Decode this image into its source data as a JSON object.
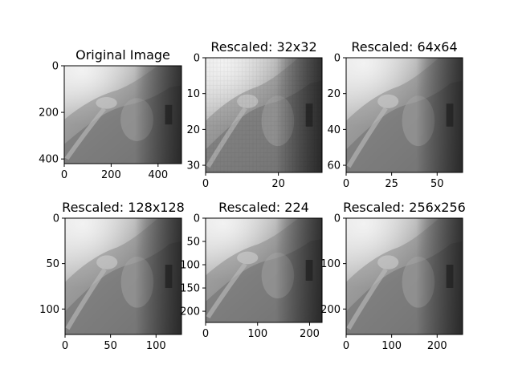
{
  "figure": {
    "background": "#ffffff",
    "axis_color": "#000000",
    "image_colormap": "gray"
  },
  "chart_data": [
    {
      "type": "heatmap",
      "content": "grayscale shoulder x-ray image",
      "title": "Original Image",
      "xlim": [
        0,
        500
      ],
      "ylim": [
        0,
        420
      ],
      "x_ticks": [
        0,
        200,
        400
      ],
      "y_ticks": [
        0,
        200,
        400
      ]
    },
    {
      "type": "heatmap",
      "content": "grayscale shoulder x-ray image",
      "title": "Rescaled: 32x32",
      "xlim": [
        0,
        32
      ],
      "ylim": [
        0,
        32
      ],
      "x_ticks": [
        0,
        20
      ],
      "y_ticks": [
        0,
        10,
        20,
        30
      ]
    },
    {
      "type": "heatmap",
      "content": "grayscale shoulder x-ray image",
      "title": "Rescaled: 64x64",
      "xlim": [
        0,
        64
      ],
      "ylim": [
        0,
        64
      ],
      "x_ticks": [
        0,
        25,
        50
      ],
      "y_ticks": [
        0,
        20,
        40,
        60
      ]
    },
    {
      "type": "heatmap",
      "content": "grayscale shoulder x-ray image",
      "title": "Rescaled: 128x128",
      "xlim": [
        0,
        128
      ],
      "ylim": [
        0,
        128
      ],
      "x_ticks": [
        0,
        50,
        100
      ],
      "y_ticks": [
        0,
        50,
        100
      ]
    },
    {
      "type": "heatmap",
      "content": "grayscale shoulder x-ray image",
      "title": "Rescaled: 224",
      "xlim": [
        0,
        224
      ],
      "ylim": [
        0,
        224
      ],
      "x_ticks": [
        0,
        100,
        200
      ],
      "y_ticks": [
        0,
        50,
        100,
        150,
        200
      ]
    },
    {
      "type": "heatmap",
      "content": "grayscale shoulder x-ray image",
      "title": "Rescaled: 256x256",
      "xlim": [
        0,
        256
      ],
      "ylim": [
        0,
        256
      ],
      "x_ticks": [
        0,
        100,
        200
      ],
      "y_ticks": [
        0,
        100,
        200
      ]
    }
  ]
}
